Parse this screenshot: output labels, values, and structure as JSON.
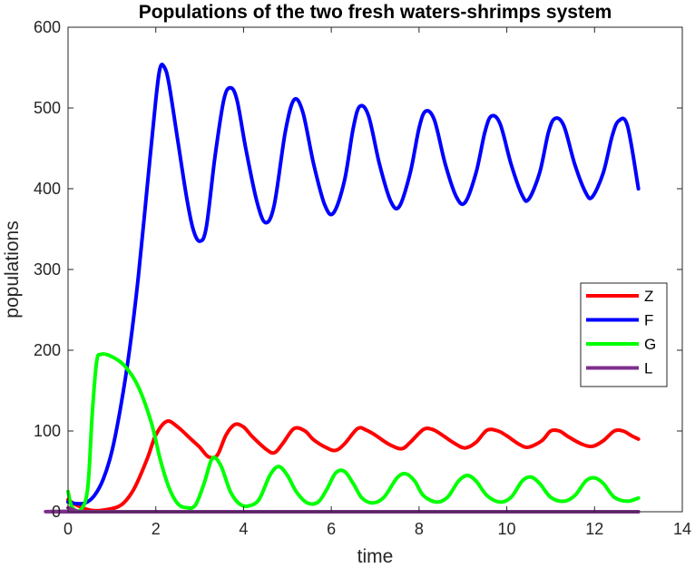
{
  "chart_data": {
    "type": "line",
    "title": "Populations of the two fresh waters-shrimps system",
    "xlabel": "time",
    "ylabel": "populations",
    "xlim": [
      0,
      14
    ],
    "ylim": [
      0,
      600
    ],
    "xticks": [
      0,
      2,
      4,
      6,
      8,
      10,
      12,
      14
    ],
    "yticks": [
      0,
      100,
      200,
      300,
      400,
      500,
      600
    ],
    "legend_position": "right-middle",
    "grid": false,
    "series": [
      {
        "name": "Z",
        "color": "#ff0000",
        "points": [
          [
            0,
            15
          ],
          [
            0.2,
            8
          ],
          [
            0.5,
            2
          ],
          [
            0.8,
            2
          ],
          [
            1.2,
            8
          ],
          [
            1.5,
            28
          ],
          [
            1.8,
            65
          ],
          [
            2.0,
            95
          ],
          [
            2.25,
            112
          ],
          [
            2.5,
            105
          ],
          [
            2.8,
            90
          ],
          [
            3.0,
            80
          ],
          [
            3.2,
            68
          ],
          [
            3.4,
            70
          ],
          [
            3.6,
            95
          ],
          [
            3.8,
            108
          ],
          [
            4.0,
            105
          ],
          [
            4.2,
            93
          ],
          [
            4.5,
            78
          ],
          [
            4.7,
            73
          ],
          [
            4.9,
            85
          ],
          [
            5.15,
            103
          ],
          [
            5.4,
            100
          ],
          [
            5.6,
            89
          ],
          [
            5.9,
            79
          ],
          [
            6.1,
            76
          ],
          [
            6.3,
            84
          ],
          [
            6.6,
            103
          ],
          [
            6.8,
            101
          ],
          [
            7.0,
            95
          ],
          [
            7.3,
            84
          ],
          [
            7.6,
            78
          ],
          [
            7.8,
            86
          ],
          [
            8.1,
            102
          ],
          [
            8.3,
            102
          ],
          [
            8.5,
            96
          ],
          [
            8.8,
            85
          ],
          [
            9.05,
            79
          ],
          [
            9.3,
            86
          ],
          [
            9.55,
            101
          ],
          [
            9.8,
            100
          ],
          [
            10.0,
            94
          ],
          [
            10.3,
            83
          ],
          [
            10.5,
            80
          ],
          [
            10.8,
            88
          ],
          [
            11.0,
            100
          ],
          [
            11.2,
            100
          ],
          [
            11.4,
            93
          ],
          [
            11.7,
            84
          ],
          [
            11.95,
            81
          ],
          [
            12.2,
            88
          ],
          [
            12.45,
            100
          ],
          [
            12.65,
            100
          ],
          [
            12.85,
            94
          ],
          [
            13.0,
            90
          ]
        ]
      },
      {
        "name": "F",
        "color": "#0000ff",
        "points": [
          [
            0,
            12
          ],
          [
            0.2,
            10
          ],
          [
            0.4,
            11
          ],
          [
            0.6,
            20
          ],
          [
            0.8,
            40
          ],
          [
            1.0,
            75
          ],
          [
            1.2,
            130
          ],
          [
            1.4,
            200
          ],
          [
            1.6,
            290
          ],
          [
            1.8,
            400
          ],
          [
            2.0,
            510
          ],
          [
            2.1,
            550
          ],
          [
            2.2,
            550
          ],
          [
            2.3,
            530
          ],
          [
            2.5,
            460
          ],
          [
            2.7,
            390
          ],
          [
            2.85,
            350
          ],
          [
            3.0,
            335
          ],
          [
            3.15,
            352
          ],
          [
            3.35,
            440
          ],
          [
            3.55,
            510
          ],
          [
            3.7,
            525
          ],
          [
            3.85,
            510
          ],
          [
            4.05,
            450
          ],
          [
            4.3,
            385
          ],
          [
            4.5,
            358
          ],
          [
            4.7,
            380
          ],
          [
            4.95,
            470
          ],
          [
            5.15,
            510
          ],
          [
            5.35,
            495
          ],
          [
            5.6,
            430
          ],
          [
            5.85,
            380
          ],
          [
            6.05,
            370
          ],
          [
            6.3,
            410
          ],
          [
            6.5,
            475
          ],
          [
            6.65,
            502
          ],
          [
            6.85,
            490
          ],
          [
            7.1,
            430
          ],
          [
            7.35,
            385
          ],
          [
            7.55,
            378
          ],
          [
            7.8,
            420
          ],
          [
            8.0,
            475
          ],
          [
            8.15,
            496
          ],
          [
            8.35,
            485
          ],
          [
            8.6,
            430
          ],
          [
            8.85,
            390
          ],
          [
            9.05,
            383
          ],
          [
            9.3,
            420
          ],
          [
            9.5,
            470
          ],
          [
            9.65,
            490
          ],
          [
            9.85,
            480
          ],
          [
            10.1,
            430
          ],
          [
            10.35,
            392
          ],
          [
            10.5,
            387
          ],
          [
            10.75,
            420
          ],
          [
            10.95,
            470
          ],
          [
            11.1,
            487
          ],
          [
            11.3,
            478
          ],
          [
            11.55,
            430
          ],
          [
            11.8,
            395
          ],
          [
            11.95,
            390
          ],
          [
            12.2,
            420
          ],
          [
            12.4,
            465
          ],
          [
            12.55,
            484
          ],
          [
            12.75,
            478
          ],
          [
            13.0,
            400
          ]
        ]
      },
      {
        "name": "G",
        "color": "#00ff00",
        "points": [
          [
            0,
            25
          ],
          [
            0.1,
            5
          ],
          [
            0.3,
            3
          ],
          [
            0.45,
            30
          ],
          [
            0.55,
            120
          ],
          [
            0.65,
            185
          ],
          [
            0.75,
            195
          ],
          [
            1.0,
            192
          ],
          [
            1.3,
            180
          ],
          [
            1.6,
            155
          ],
          [
            1.9,
            110
          ],
          [
            2.1,
            65
          ],
          [
            2.3,
            30
          ],
          [
            2.5,
            10
          ],
          [
            2.7,
            5
          ],
          [
            2.9,
            8
          ],
          [
            3.1,
            35
          ],
          [
            3.25,
            62
          ],
          [
            3.35,
            67
          ],
          [
            3.5,
            55
          ],
          [
            3.7,
            25
          ],
          [
            3.9,
            10
          ],
          [
            4.1,
            7
          ],
          [
            4.35,
            15
          ],
          [
            4.6,
            45
          ],
          [
            4.8,
            56
          ],
          [
            5.0,
            45
          ],
          [
            5.2,
            25
          ],
          [
            5.45,
            11
          ],
          [
            5.7,
            12
          ],
          [
            5.9,
            28
          ],
          [
            6.1,
            48
          ],
          [
            6.3,
            50
          ],
          [
            6.5,
            35
          ],
          [
            6.7,
            17
          ],
          [
            6.95,
            11
          ],
          [
            7.2,
            18
          ],
          [
            7.5,
            42
          ],
          [
            7.7,
            47
          ],
          [
            7.9,
            38
          ],
          [
            8.1,
            20
          ],
          [
            8.4,
            12
          ],
          [
            8.65,
            18
          ],
          [
            8.9,
            38
          ],
          [
            9.1,
            45
          ],
          [
            9.3,
            38
          ],
          [
            9.55,
            20
          ],
          [
            9.85,
            12
          ],
          [
            10.1,
            18
          ],
          [
            10.35,
            38
          ],
          [
            10.55,
            43
          ],
          [
            10.75,
            35
          ],
          [
            11.0,
            18
          ],
          [
            11.3,
            13
          ],
          [
            11.55,
            20
          ],
          [
            11.8,
            38
          ],
          [
            12.0,
            42
          ],
          [
            12.2,
            35
          ],
          [
            12.45,
            18
          ],
          [
            12.75,
            13
          ],
          [
            13.0,
            17
          ]
        ]
      },
      {
        "name": "L",
        "color": "#7e2f8e",
        "points": [
          [
            0,
            5
          ],
          [
            0.2,
            1
          ],
          [
            0.5,
            0
          ],
          [
            13.0,
            0
          ]
        ]
      }
    ]
  }
}
